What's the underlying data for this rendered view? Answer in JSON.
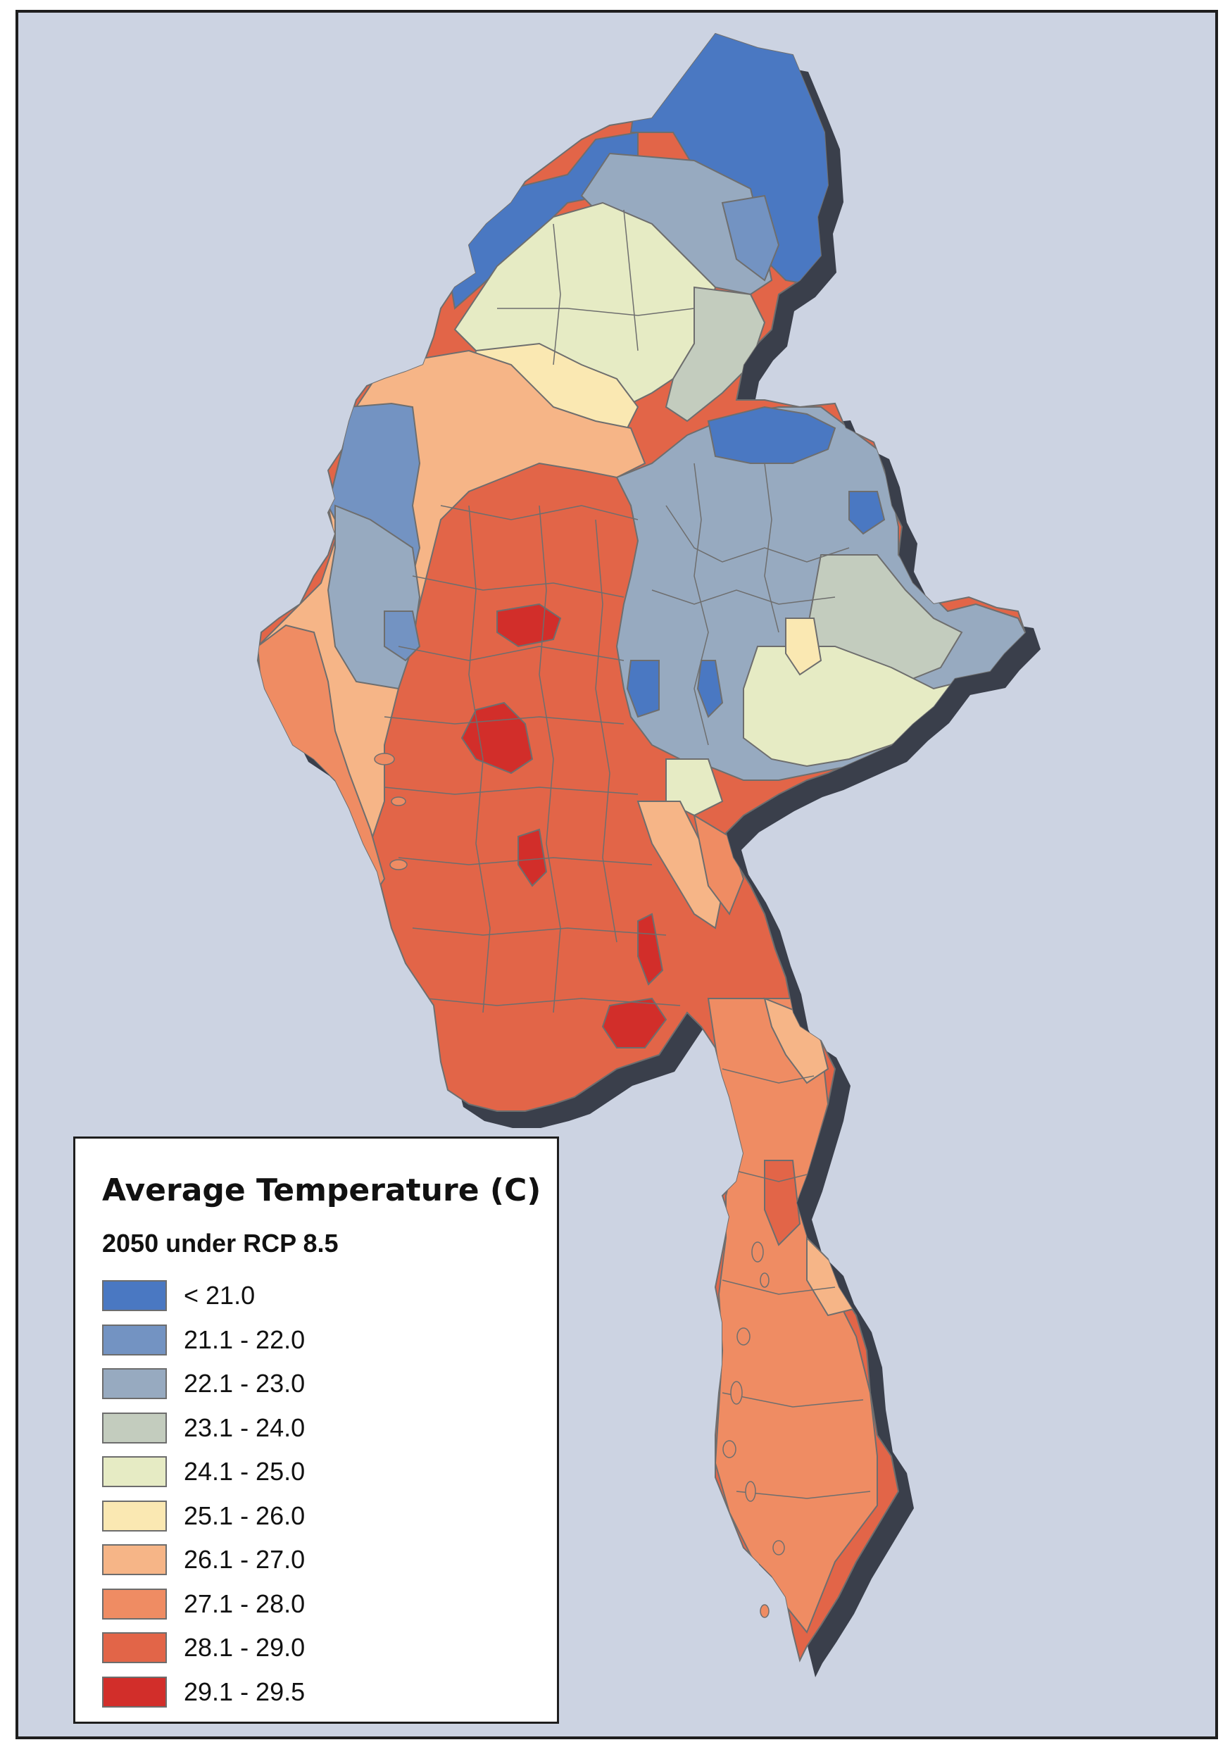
{
  "map": {
    "colors": {
      "background": "#ccd3e2",
      "shadow": "#3a3f4b",
      "boundary": "#6e6e6e"
    }
  },
  "legend": {
    "title": "Average Temperature (C)",
    "subtitle": "2050 under RCP 8.5",
    "classes": [
      {
        "label": "< 21.0",
        "color": "#4a78c2"
      },
      {
        "label": "21.1 - 22.0",
        "color": "#7393c2"
      },
      {
        "label": "22.1 - 23.0",
        "color": "#97aac0"
      },
      {
        "label": "23.1 - 24.0",
        "color": "#c3ccbe"
      },
      {
        "label": "24.1 - 25.0",
        "color": "#e6ebc4"
      },
      {
        "label": "25.1 - 26.0",
        "color": "#fae8b2"
      },
      {
        "label": "26.1 - 27.0",
        "color": "#f6b587"
      },
      {
        "label": "27.1 - 28.0",
        "color": "#ef8c63"
      },
      {
        "label": "28.1 - 29.0",
        "color": "#e26548"
      },
      {
        "label": "29.1 - 29.5",
        "color": "#d22e2a"
      }
    ]
  }
}
